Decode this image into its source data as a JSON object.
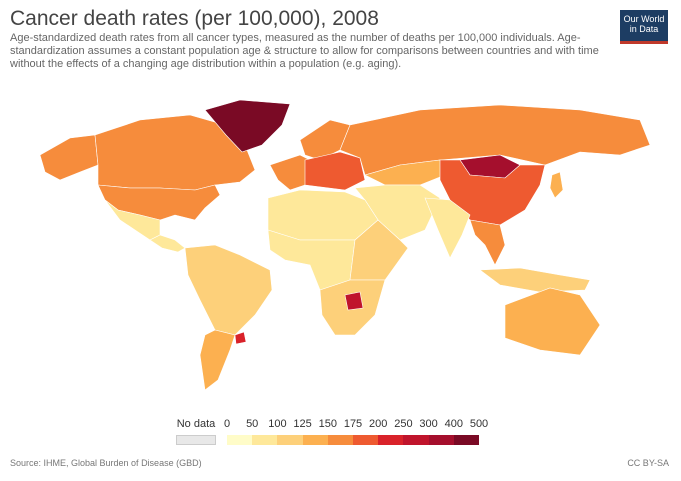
{
  "header": {
    "title": "Cancer death rates (per 100,000), 2008",
    "subtitle": "Age-standardized death rates from all cancer types, measured as the number of deaths per 100,000 individuals. Age-standardization assumes a constant population age & structure to allow for comparisons between countries and with time without the effects of a changing age distribution within a population (e.g. aging).",
    "logo": "Our World in Data"
  },
  "legend": {
    "no_data": "No data",
    "ticks": [
      "0",
      "50",
      "100",
      "125",
      "150",
      "175",
      "200",
      "250",
      "300",
      "400",
      "500"
    ],
    "colors": [
      "#fffcc8",
      "#fee89a",
      "#fdd07a",
      "#fcb050",
      "#f68c3c",
      "#ee5a30",
      "#d9222a",
      "#c0142c",
      "#a50f2d",
      "#7a0a25"
    ],
    "no_data_color": "#e8e8e8"
  },
  "map_values": {
    "alaska": 150,
    "canada": 155,
    "usa": 160,
    "greenland": 450,
    "mexico": 80,
    "central_america": 70,
    "south_america": 110,
    "argentina": 140,
    "uruguay": 220,
    "europe_west": 165,
    "europe_central": 190,
    "scandinavia": 150,
    "russia": 155,
    "middle_east": 80,
    "africa_north": 60,
    "africa_central": 90,
    "africa_east": 120,
    "africa_south": 100,
    "zimbabwe": 250,
    "india": 70,
    "kazakhstan": 140,
    "china": 180,
    "mongolia": 330,
    "se_asia": 150,
    "indonesia": 110,
    "australia": 135,
    "japan": 140
  },
  "footer": {
    "source": "Source: IHME, Global Burden of Disease (GBD)",
    "license": "CC BY-SA"
  }
}
